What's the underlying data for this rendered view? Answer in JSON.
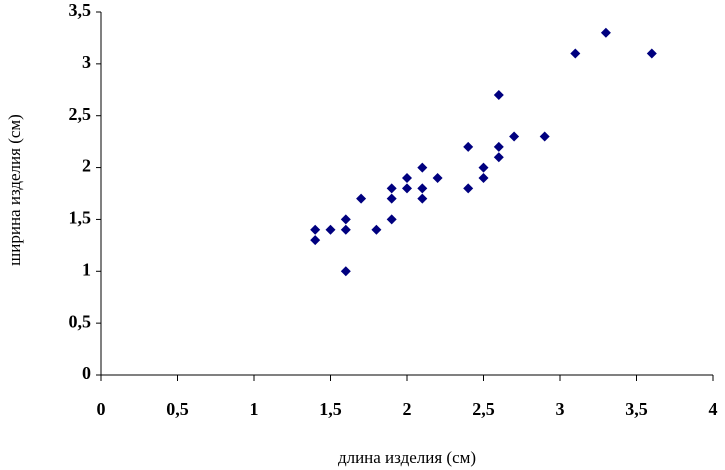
{
  "chart_data": {
    "type": "scatter",
    "x_label": "длина изделия (см)",
    "y_label": "ширина изделия (см)",
    "x": [
      1.4,
      1.4,
      1.5,
      1.6,
      1.6,
      1.6,
      1.7,
      1.8,
      1.9,
      1.9,
      1.9,
      2.0,
      2.0,
      2.1,
      2.1,
      2.1,
      2.2,
      2.4,
      2.4,
      2.5,
      2.5,
      2.6,
      2.6,
      2.6,
      2.7,
      2.9,
      3.1,
      3.3,
      3.6
    ],
    "values": [
      1.4,
      1.3,
      1.4,
      1.5,
      1.4,
      1.0,
      1.7,
      1.4,
      1.8,
      1.7,
      1.5,
      1.9,
      1.8,
      2.0,
      1.8,
      1.7,
      1.9,
      2.2,
      1.8,
      2.0,
      1.9,
      2.7,
      2.2,
      2.1,
      2.3,
      2.3,
      3.1,
      3.3,
      3.1
    ],
    "color": "#00007f",
    "xlim": [
      0,
      4
    ],
    "ylim": [
      0,
      3.5
    ],
    "xticks": [
      0,
      {
        "value": 0.5,
        "label": "0,5"
      },
      1,
      {
        "value": 1.5,
        "label": "1,5"
      },
      2,
      {
        "value": 2.5,
        "label": "2,5"
      },
      3,
      {
        "value": 3.5,
        "label": "3,5"
      },
      4
    ],
    "yticks": [
      0,
      {
        "value": 0.5,
        "label": "0,5"
      },
      1,
      {
        "value": 1.5,
        "label": "1,5"
      },
      2,
      {
        "value": 2.5,
        "label": "2,5"
      },
      3,
      {
        "value": 3.5,
        "label": "3,5"
      }
    ],
    "grid": false
  }
}
